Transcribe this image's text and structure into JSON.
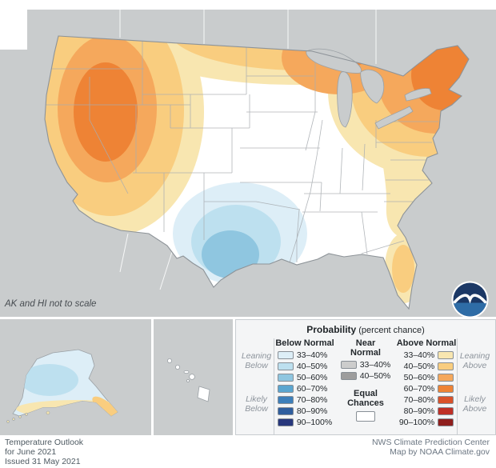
{
  "map": {
    "scale_note": "AK and HI not to scale",
    "colors": {
      "background_gray": "#c9cccd",
      "equal_chances_white": "#ffffff",
      "above_60_70_core": "#ee8335",
      "below_50_60_core": "#8fc6e0"
    }
  },
  "legend": {
    "title": "Probability",
    "title_suffix": " (percent chance)",
    "below": {
      "header": "Below Normal",
      "items": [
        {
          "label": "33–40%",
          "color": "#ddeef7"
        },
        {
          "label": "40–50%",
          "color": "#bde0ef"
        },
        {
          "label": "50–60%",
          "color": "#8fc6e0"
        },
        {
          "label": "60–70%",
          "color": "#5ba6d0"
        },
        {
          "label": "70–80%",
          "color": "#3d7fba"
        },
        {
          "label": "80–90%",
          "color": "#2f5e9e"
        },
        {
          "label": "90–100%",
          "color": "#27377c"
        }
      ]
    },
    "near": {
      "header": "Near Normal",
      "items": [
        {
          "label": "33–40%",
          "color": "#cccccc"
        },
        {
          "label": "40–50%",
          "color": "#9d9d9d"
        }
      ],
      "equal_label": "Equal Chances",
      "equal_color": "#ffffff"
    },
    "above": {
      "header": "Above Normal",
      "items": [
        {
          "label": "33–40%",
          "color": "#f8e6b0"
        },
        {
          "label": "40–50%",
          "color": "#f9cd7f"
        },
        {
          "label": "50–60%",
          "color": "#f5a85c"
        },
        {
          "label": "60–70%",
          "color": "#ee8335"
        },
        {
          "label": "70–80%",
          "color": "#d9522a"
        },
        {
          "label": "80–90%",
          "color": "#bf3026"
        },
        {
          "label": "90–100%",
          "color": "#8f1f1d"
        }
      ]
    },
    "side_labels": {
      "leaning_below": "Leaning Below",
      "likely_below": "Likely Below",
      "leaning_above": "Leaning Above",
      "likely_above": "Likely Above"
    }
  },
  "footer": {
    "left_lines": [
      "Temperature Outlook",
      "for June 2021",
      "Issued 31 May 2021"
    ],
    "right_lines": [
      "NWS Climate Prediction Center",
      "Map by NOAA Climate.gov"
    ]
  }
}
